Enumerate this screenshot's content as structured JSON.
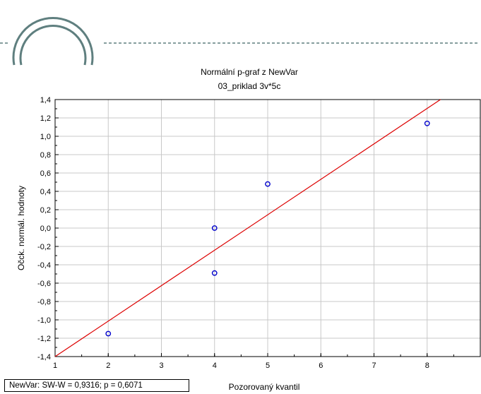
{
  "chart_data": {
    "type": "scatter",
    "title": "Normální p-graf z NewVar",
    "subtitle": "03_priklad 3v*5c",
    "xlabel": "Pozorovaný kvantil",
    "ylabel": "Očck. normál. hodnoty",
    "xlim": [
      1,
      9
    ],
    "ylim": [
      -1.4,
      1.4
    ],
    "x_ticks": [
      "1",
      "2",
      "3",
      "4",
      "5",
      "6",
      "7",
      "8"
    ],
    "y_ticks": [
      "1,4",
      "1,2",
      "1,0",
      "0,8",
      "0,6",
      "0,4",
      "0,2",
      "0,0",
      "-0,2",
      "-0,4",
      "-0,6",
      "-0,8",
      "-1,0",
      "-1,2",
      "-1,4"
    ],
    "grid": true,
    "points": [
      {
        "x": 2,
        "y": -1.15
      },
      {
        "x": 4,
        "y": -0.49
      },
      {
        "x": 4,
        "y": 0.0
      },
      {
        "x": 5,
        "y": 0.48
      },
      {
        "x": 8,
        "y": 1.14
      }
    ],
    "fit_line": {
      "x": [
        1,
        8.25
      ],
      "y": [
        -1.4,
        1.4
      ]
    },
    "colors": {
      "points": "#0000cc",
      "fit_line": "#dd0000",
      "grid": "#c8c8c8",
      "decoration": "#5f7f7f"
    }
  },
  "stats_box": "NewVar:  SW-W = 0,9316; p = 0,6071"
}
